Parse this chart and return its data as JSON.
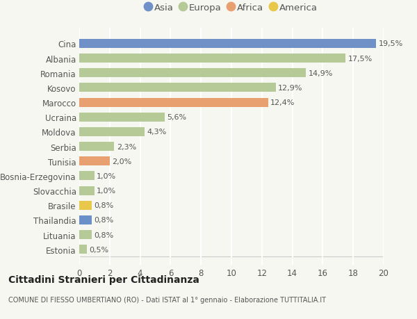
{
  "categories": [
    "Estonia",
    "Lituania",
    "Thailandia",
    "Brasile",
    "Slovacchia",
    "Bosnia-Erzegovina",
    "Tunisia",
    "Serbia",
    "Moldova",
    "Ucraina",
    "Marocco",
    "Kosovo",
    "Romania",
    "Albania",
    "Cina"
  ],
  "values": [
    0.5,
    0.8,
    0.8,
    0.8,
    1.0,
    1.0,
    2.0,
    2.3,
    4.3,
    5.6,
    12.4,
    12.9,
    14.9,
    17.5,
    19.5
  ],
  "labels": [
    "0,5%",
    "0,8%",
    "0,8%",
    "0,8%",
    "1,0%",
    "1,0%",
    "2,0%",
    "2,3%",
    "4,3%",
    "5,6%",
    "12,4%",
    "12,9%",
    "14,9%",
    "17,5%",
    "19,5%"
  ],
  "colors": [
    "#b5ca96",
    "#b5ca96",
    "#6b8fc7",
    "#e8c84a",
    "#b5ca96",
    "#b5ca96",
    "#e8a070",
    "#b5ca96",
    "#b5ca96",
    "#b5ca96",
    "#e8a070",
    "#b5ca96",
    "#b5ca96",
    "#b5ca96",
    "#7090c8"
  ],
  "legend": [
    {
      "label": "Asia",
      "color": "#7090c8"
    },
    {
      "label": "Europa",
      "color": "#b5ca96"
    },
    {
      "label": "Africa",
      "color": "#e8a070"
    },
    {
      "label": "America",
      "color": "#e8c84a"
    }
  ],
  "title": "Cittadini Stranieri per Cittadinanza",
  "subtitle": "COMUNE DI FIESSO UMBERTIANO (RO) - Dati ISTAT al 1° gennaio - Elaborazione TUTTITALIA.IT",
  "xlim": [
    0,
    20
  ],
  "xticks": [
    0,
    2,
    4,
    6,
    8,
    10,
    12,
    14,
    16,
    18,
    20
  ],
  "background_color": "#f7f7f2",
  "bar_height": 0.62,
  "figure_width": 6.0,
  "figure_height": 4.6,
  "grid_color": "#ffffff",
  "text_color": "#555555"
}
